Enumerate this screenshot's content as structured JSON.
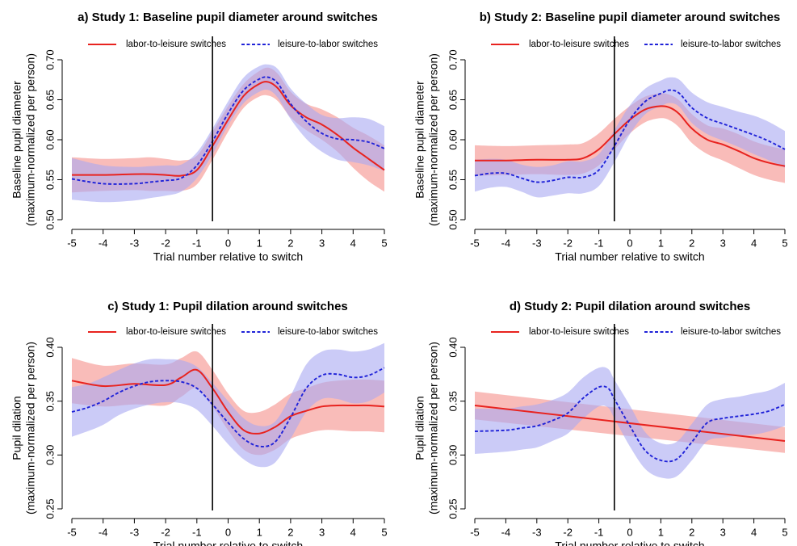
{
  "colors": {
    "labor_to_leisure": "#e8231f",
    "leisure_to_labor": "#1f22d8",
    "labor_band": "#f7a5a2",
    "leisure_band": "#a8a8f2",
    "switch_line": "#000000"
  },
  "chart_data": [
    {
      "id": "a",
      "type": "line",
      "title": "a) Study 1: Baseline pupil diameter around switches",
      "xlabel": "Trial number relative to switch",
      "ylabel": "Baseline pupil diameter",
      "ylabel2": "(maximum-normalized per person)",
      "xlim": [
        -5,
        5
      ],
      "ylim": [
        0.5,
        0.7
      ],
      "xticks": [
        "-5",
        "-4",
        "-3",
        "-2",
        "-1",
        "0",
        "1",
        "2",
        "3",
        "4",
        "5"
      ],
      "yticks": [
        "0.50",
        "0.55",
        "0.60",
        "0.65",
        "0.70"
      ],
      "switch_x": -0.5,
      "legend": "top",
      "series": [
        {
          "name": "labor-to-leisure switches",
          "style": "solid",
          "x": [
            -5,
            -4,
            -3,
            -2.5,
            -2,
            -1.5,
            -1,
            -0.5,
            0,
            0.5,
            1,
            1.3,
            1.6,
            2,
            2.5,
            3,
            3.5,
            4,
            4.5,
            5
          ],
          "y": [
            0.556,
            0.556,
            0.557,
            0.557,
            0.556,
            0.555,
            0.562,
            0.592,
            0.625,
            0.655,
            0.67,
            0.672,
            0.664,
            0.643,
            0.628,
            0.619,
            0.606,
            0.59,
            0.576,
            0.562
          ],
          "lower": [
            0.534,
            0.536,
            0.537,
            0.536,
            0.536,
            0.536,
            0.544,
            0.575,
            0.61,
            0.64,
            0.654,
            0.655,
            0.648,
            0.628,
            0.612,
            0.6,
            0.585,
            0.565,
            0.548,
            0.535
          ],
          "upper": [
            0.578,
            0.576,
            0.577,
            0.578,
            0.576,
            0.574,
            0.58,
            0.61,
            0.642,
            0.67,
            0.686,
            0.69,
            0.682,
            0.66,
            0.645,
            0.638,
            0.628,
            0.615,
            0.605,
            0.593
          ]
        },
        {
          "name": "leisure-to-labor switches",
          "style": "dashed",
          "x": [
            -5,
            -4,
            -3,
            -2.5,
            -2,
            -1.5,
            -1,
            -0.5,
            0,
            0.5,
            1,
            1.3,
            1.6,
            2,
            2.5,
            3,
            3.5,
            4,
            4.5,
            5
          ],
          "y": [
            0.551,
            0.545,
            0.545,
            0.547,
            0.549,
            0.552,
            0.568,
            0.598,
            0.633,
            0.662,
            0.676,
            0.678,
            0.67,
            0.645,
            0.623,
            0.608,
            0.601,
            0.6,
            0.597,
            0.589
          ],
          "lower": [
            0.525,
            0.522,
            0.524,
            0.527,
            0.53,
            0.535,
            0.552,
            0.582,
            0.618,
            0.646,
            0.66,
            0.662,
            0.652,
            0.626,
            0.601,
            0.585,
            0.575,
            0.572,
            0.568,
            0.561
          ],
          "upper": [
            0.577,
            0.568,
            0.566,
            0.567,
            0.568,
            0.569,
            0.584,
            0.614,
            0.648,
            0.678,
            0.692,
            0.694,
            0.688,
            0.664,
            0.645,
            0.631,
            0.627,
            0.628,
            0.626,
            0.617
          ]
        }
      ]
    },
    {
      "id": "b",
      "type": "line",
      "title": "b) Study 2: Baseline pupil diameter around switches",
      "xlabel": "Trial number relative to switch",
      "ylabel": "Baseline pupil diameter",
      "ylabel2": "(maximum-normalized per person)",
      "xlim": [
        -5,
        5
      ],
      "ylim": [
        0.5,
        0.7
      ],
      "xticks": [
        "-5",
        "-4",
        "-3",
        "-2",
        "-1",
        "0",
        "1",
        "2",
        "3",
        "4",
        "5"
      ],
      "yticks": [
        "0.50",
        "0.55",
        "0.60",
        "0.65",
        "0.70"
      ],
      "switch_x": -0.5,
      "legend": "top",
      "series": [
        {
          "name": "labor-to-leisure switches",
          "style": "solid",
          "x": [
            -5,
            -4,
            -3,
            -2,
            -1.5,
            -1,
            -0.5,
            0,
            0.5,
            1,
            1.3,
            1.6,
            2,
            2.5,
            3,
            3.5,
            4,
            4.5,
            5
          ],
          "y": [
            0.574,
            0.574,
            0.575,
            0.575,
            0.577,
            0.588,
            0.607,
            0.625,
            0.638,
            0.642,
            0.64,
            0.632,
            0.614,
            0.6,
            0.594,
            0.586,
            0.577,
            0.571,
            0.567
          ],
          "lower": [
            0.555,
            0.556,
            0.557,
            0.556,
            0.558,
            0.568,
            0.588,
            0.608,
            0.622,
            0.627,
            0.624,
            0.615,
            0.596,
            0.582,
            0.574,
            0.565,
            0.556,
            0.55,
            0.546
          ],
          "upper": [
            0.593,
            0.592,
            0.593,
            0.594,
            0.596,
            0.608,
            0.626,
            0.642,
            0.654,
            0.658,
            0.656,
            0.649,
            0.632,
            0.618,
            0.614,
            0.607,
            0.598,
            0.592,
            0.588
          ]
        },
        {
          "name": "leisure-to-labor switches",
          "style": "dashed",
          "x": [
            -5,
            -4.5,
            -4,
            -3.5,
            -3,
            -2.5,
            -2,
            -1.5,
            -1,
            -0.5,
            0,
            0.5,
            1,
            1.3,
            1.6,
            2,
            2.5,
            3,
            3.5,
            4,
            4.5,
            5
          ],
          "y": [
            0.555,
            0.558,
            0.558,
            0.552,
            0.547,
            0.549,
            0.553,
            0.553,
            0.562,
            0.592,
            0.625,
            0.648,
            0.658,
            0.662,
            0.658,
            0.64,
            0.627,
            0.62,
            0.613,
            0.606,
            0.598,
            0.588
          ],
          "lower": [
            0.535,
            0.54,
            0.541,
            0.535,
            0.528,
            0.53,
            0.533,
            0.533,
            0.542,
            0.572,
            0.607,
            0.632,
            0.642,
            0.646,
            0.641,
            0.621,
            0.607,
            0.599,
            0.591,
            0.582,
            0.574,
            0.565
          ],
          "upper": [
            0.575,
            0.576,
            0.575,
            0.569,
            0.566,
            0.568,
            0.573,
            0.573,
            0.582,
            0.612,
            0.643,
            0.664,
            0.674,
            0.678,
            0.675,
            0.659,
            0.647,
            0.641,
            0.635,
            0.63,
            0.622,
            0.611
          ]
        }
      ]
    },
    {
      "id": "c",
      "type": "line",
      "title": "c) Study 1: Pupil dilation around switches",
      "xlabel": "Trial number relative to switch",
      "ylabel": "Pupil dilation",
      "ylabel2": "(maximum-normalized per person)",
      "xlim": [
        -5,
        5
      ],
      "ylim": [
        0.25,
        0.4
      ],
      "xticks": [
        "-5",
        "-4",
        "-3",
        "-2",
        "-1",
        "0",
        "1",
        "2",
        "3",
        "4",
        "5"
      ],
      "yticks": [
        "0.25",
        "0.30",
        "0.35",
        "0.40"
      ],
      "switch_x": -0.5,
      "legend": "top",
      "series": [
        {
          "name": "labor-to-leisure switches",
          "style": "solid",
          "x": [
            -5,
            -4,
            -3,
            -2,
            -1.5,
            -1,
            -0.5,
            0,
            0.5,
            1,
            1.5,
            2,
            2.5,
            3,
            3.5,
            4,
            4.5,
            5
          ],
          "y": [
            0.369,
            0.364,
            0.366,
            0.365,
            0.372,
            0.379,
            0.362,
            0.34,
            0.323,
            0.32,
            0.326,
            0.336,
            0.341,
            0.345,
            0.346,
            0.346,
            0.346,
            0.345
          ],
          "lower": [
            0.348,
            0.345,
            0.347,
            0.346,
            0.354,
            0.362,
            0.345,
            0.323,
            0.305,
            0.3,
            0.305,
            0.315,
            0.32,
            0.323,
            0.323,
            0.322,
            0.322,
            0.321
          ],
          "upper": [
            0.39,
            0.383,
            0.385,
            0.384,
            0.39,
            0.396,
            0.379,
            0.357,
            0.341,
            0.34,
            0.347,
            0.357,
            0.362,
            0.367,
            0.369,
            0.37,
            0.37,
            0.369
          ]
        },
        {
          "name": "leisure-to-labor switches",
          "style": "dashed",
          "x": [
            -5,
            -4.5,
            -4,
            -3.5,
            -3,
            -2.5,
            -2,
            -1.5,
            -1,
            -0.5,
            0,
            0.5,
            1,
            1.5,
            2,
            2.5,
            3,
            3.5,
            4,
            4.5,
            5
          ],
          "y": [
            0.34,
            0.344,
            0.35,
            0.358,
            0.364,
            0.368,
            0.369,
            0.368,
            0.362,
            0.347,
            0.33,
            0.315,
            0.308,
            0.312,
            0.335,
            0.362,
            0.374,
            0.375,
            0.372,
            0.374,
            0.381
          ],
          "lower": [
            0.317,
            0.322,
            0.328,
            0.337,
            0.343,
            0.347,
            0.349,
            0.348,
            0.342,
            0.327,
            0.31,
            0.296,
            0.289,
            0.293,
            0.315,
            0.34,
            0.352,
            0.352,
            0.348,
            0.35,
            0.358
          ],
          "upper": [
            0.363,
            0.366,
            0.372,
            0.379,
            0.385,
            0.389,
            0.389,
            0.388,
            0.382,
            0.367,
            0.35,
            0.334,
            0.327,
            0.331,
            0.355,
            0.384,
            0.396,
            0.398,
            0.396,
            0.398,
            0.404
          ]
        }
      ]
    },
    {
      "id": "d",
      "type": "line",
      "title": "d) Study 2: Pupil dilation around switches",
      "xlabel": "Trial number relative to switch",
      "ylabel": "Pupil dilation",
      "ylabel2": "(maximum-normalized per person)",
      "xlim": [
        -5,
        5
      ],
      "ylim": [
        0.25,
        0.4
      ],
      "xticks": [
        "-5",
        "-4",
        "-3",
        "-2",
        "-1",
        "0",
        "1",
        "2",
        "3",
        "4",
        "5"
      ],
      "yticks": [
        "0.25",
        "0.30",
        "0.35",
        "0.40"
      ],
      "switch_x": -0.5,
      "legend": "top",
      "series": [
        {
          "name": "labor-to-leisure switches",
          "style": "solid",
          "x": [
            -5,
            5
          ],
          "y": [
            0.346,
            0.313
          ],
          "lower": [
            0.333,
            0.302
          ],
          "upper": [
            0.359,
            0.326
          ]
        },
        {
          "name": "leisure-to-labor switches",
          "style": "dashed",
          "x": [
            -5,
            -4,
            -3.5,
            -3,
            -2.5,
            -2,
            -1.5,
            -1,
            -0.7,
            -0.5,
            0,
            0.5,
            1,
            1.5,
            2,
            2.5,
            3,
            3.5,
            4,
            4.5,
            5
          ],
          "y": [
            0.322,
            0.323,
            0.325,
            0.327,
            0.332,
            0.339,
            0.353,
            0.363,
            0.362,
            0.352,
            0.327,
            0.304,
            0.295,
            0.296,
            0.312,
            0.33,
            0.334,
            0.336,
            0.338,
            0.341,
            0.347
          ],
          "lower": [
            0.301,
            0.303,
            0.305,
            0.307,
            0.313,
            0.32,
            0.334,
            0.345,
            0.344,
            0.334,
            0.308,
            0.287,
            0.279,
            0.28,
            0.295,
            0.313,
            0.316,
            0.318,
            0.319,
            0.322,
            0.327
          ],
          "upper": [
            0.343,
            0.343,
            0.345,
            0.347,
            0.351,
            0.358,
            0.372,
            0.381,
            0.38,
            0.37,
            0.346,
            0.321,
            0.311,
            0.312,
            0.329,
            0.347,
            0.352,
            0.354,
            0.357,
            0.36,
            0.367
          ]
        }
      ]
    }
  ]
}
